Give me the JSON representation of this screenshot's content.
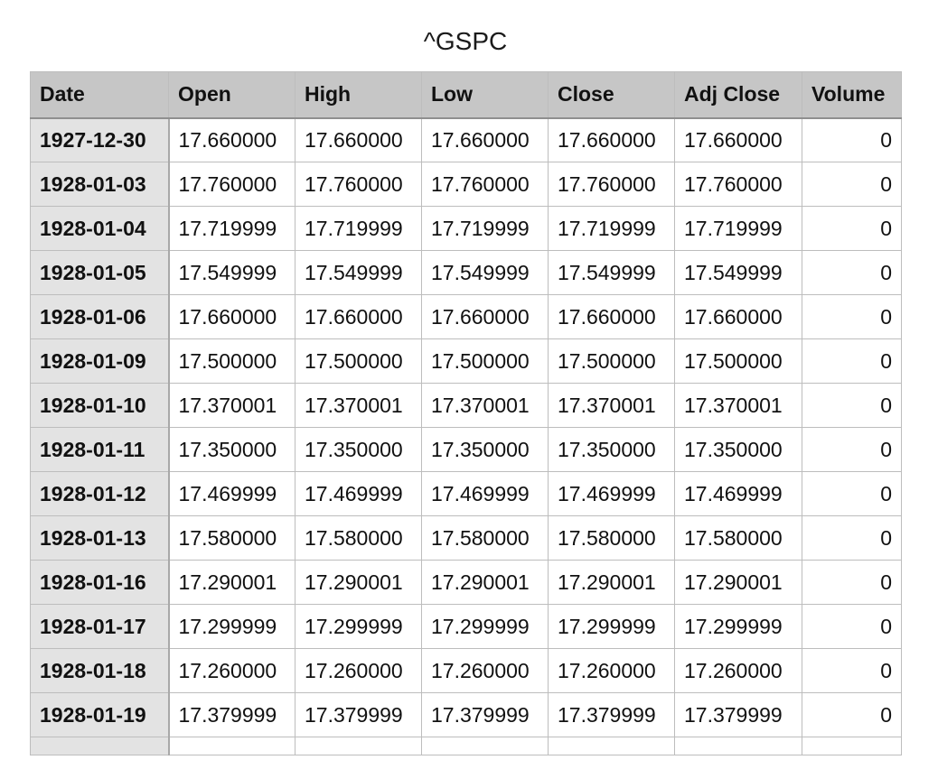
{
  "sheet": {
    "title": "^GSPC"
  },
  "table": {
    "columns": [
      "Date",
      "Open",
      "High",
      "Low",
      "Close",
      "Adj Close",
      "Volume"
    ],
    "rows": [
      [
        "1927-12-30",
        "17.660000",
        "17.660000",
        "17.660000",
        "17.660000",
        "17.660000",
        "0"
      ],
      [
        "1928-01-03",
        "17.760000",
        "17.760000",
        "17.760000",
        "17.760000",
        "17.760000",
        "0"
      ],
      [
        "1928-01-04",
        "17.719999",
        "17.719999",
        "17.719999",
        "17.719999",
        "17.719999",
        "0"
      ],
      [
        "1928-01-05",
        "17.549999",
        "17.549999",
        "17.549999",
        "17.549999",
        "17.549999",
        "0"
      ],
      [
        "1928-01-06",
        "17.660000",
        "17.660000",
        "17.660000",
        "17.660000",
        "17.660000",
        "0"
      ],
      [
        "1928-01-09",
        "17.500000",
        "17.500000",
        "17.500000",
        "17.500000",
        "17.500000",
        "0"
      ],
      [
        "1928-01-10",
        "17.370001",
        "17.370001",
        "17.370001",
        "17.370001",
        "17.370001",
        "0"
      ],
      [
        "1928-01-11",
        "17.350000",
        "17.350000",
        "17.350000",
        "17.350000",
        "17.350000",
        "0"
      ],
      [
        "1928-01-12",
        "17.469999",
        "17.469999",
        "17.469999",
        "17.469999",
        "17.469999",
        "0"
      ],
      [
        "1928-01-13",
        "17.580000",
        "17.580000",
        "17.580000",
        "17.580000",
        "17.580000",
        "0"
      ],
      [
        "1928-01-16",
        "17.290001",
        "17.290001",
        "17.290001",
        "17.290001",
        "17.290001",
        "0"
      ],
      [
        "1928-01-17",
        "17.299999",
        "17.299999",
        "17.299999",
        "17.299999",
        "17.299999",
        "0"
      ],
      [
        "1928-01-18",
        "17.260000",
        "17.260000",
        "17.260000",
        "17.260000",
        "17.260000",
        "0"
      ],
      [
        "1928-01-19",
        "17.379999",
        "17.379999",
        "17.379999",
        "17.379999",
        "17.379999",
        "0"
      ]
    ]
  }
}
